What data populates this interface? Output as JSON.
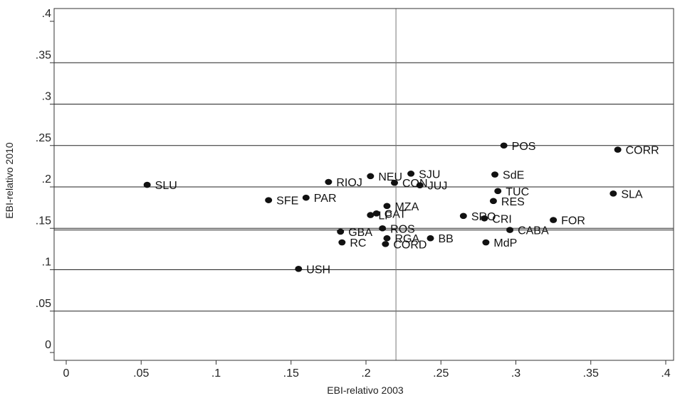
{
  "chart_data": {
    "type": "scatter",
    "xlabel": "EBI-relativo 2003",
    "ylabel": "EBI-relativo 2010",
    "xlim": [
      0,
      0.4
    ],
    "ylim": [
      0,
      0.4
    ],
    "xticks": [
      {
        "v": 0,
        "label": "0"
      },
      {
        "v": 0.05,
        "label": ".05"
      },
      {
        "v": 0.1,
        "label": ".1"
      },
      {
        "v": 0.15,
        "label": ".15"
      },
      {
        "v": 0.2,
        "label": ".2"
      },
      {
        "v": 0.25,
        "label": ".25"
      },
      {
        "v": 0.3,
        "label": ".3"
      },
      {
        "v": 0.35,
        "label": ".35"
      },
      {
        "v": 0.4,
        "label": ".4"
      }
    ],
    "yticks": [
      {
        "v": 0,
        "label": "0"
      },
      {
        "v": 0.05,
        "label": ".05"
      },
      {
        "v": 0.1,
        "label": ".1"
      },
      {
        "v": 0.15,
        "label": ".15"
      },
      {
        "v": 0.2,
        "label": ".2"
      },
      {
        "v": 0.25,
        "label": ".25"
      },
      {
        "v": 0.3,
        "label": ".3"
      },
      {
        "v": 0.35,
        "label": ".35"
      },
      {
        "v": 0.4,
        "label": ".4"
      }
    ],
    "grid": true,
    "reference_lines": {
      "x": 0.22,
      "y": 0.148
    },
    "points": [
      {
        "label": "SLU",
        "x": 0.054,
        "y": 0.2025
      },
      {
        "label": "SFE",
        "x": 0.135,
        "y": 0.184
      },
      {
        "label": "PAR",
        "x": 0.16,
        "y": 0.187
      },
      {
        "label": "RIOJ",
        "x": 0.175,
        "y": 0.206
      },
      {
        "label": "NEU",
        "x": 0.203,
        "y": 0.213
      },
      {
        "label": "SJU",
        "x": 0.23,
        "y": 0.216
      },
      {
        "label": "CON",
        "x": 0.219,
        "y": 0.205
      },
      {
        "label": "JUJ",
        "x": 0.236,
        "y": 0.202
      },
      {
        "label": "MZA",
        "x": 0.214,
        "y": 0.177
      },
      {
        "label": "LP",
        "x": 0.203,
        "y": 0.166
      },
      {
        "label": "CAT",
        "x": 0.207,
        "y": 0.168
      },
      {
        "label": "ROS",
        "x": 0.211,
        "y": 0.15
      },
      {
        "label": "GBA",
        "x": 0.183,
        "y": 0.146
      },
      {
        "label": "RGA",
        "x": 0.214,
        "y": 0.138
      },
      {
        "label": "RC",
        "x": 0.184,
        "y": 0.133
      },
      {
        "label": "CORD",
        "x": 0.213,
        "y": 0.131
      },
      {
        "label": "BB",
        "x": 0.243,
        "y": 0.138
      },
      {
        "label": "USH",
        "x": 0.155,
        "y": 0.101
      },
      {
        "label": "POS",
        "x": 0.292,
        "y": 0.25
      },
      {
        "label": "SdE",
        "x": 0.286,
        "y": 0.215
      },
      {
        "label": "TUC",
        "x": 0.288,
        "y": 0.195
      },
      {
        "label": "RES",
        "x": 0.285,
        "y": 0.183
      },
      {
        "label": "SRO",
        "x": 0.265,
        "y": 0.165
      },
      {
        "label": "CRI",
        "x": 0.279,
        "y": 0.162
      },
      {
        "label": "CABA",
        "x": 0.296,
        "y": 0.148
      },
      {
        "label": "MdP",
        "x": 0.28,
        "y": 0.133
      },
      {
        "label": "FOR",
        "x": 0.325,
        "y": 0.16
      },
      {
        "label": "CORR",
        "x": 0.368,
        "y": 0.245
      },
      {
        "label": "SLA",
        "x": 0.365,
        "y": 0.192
      }
    ]
  }
}
